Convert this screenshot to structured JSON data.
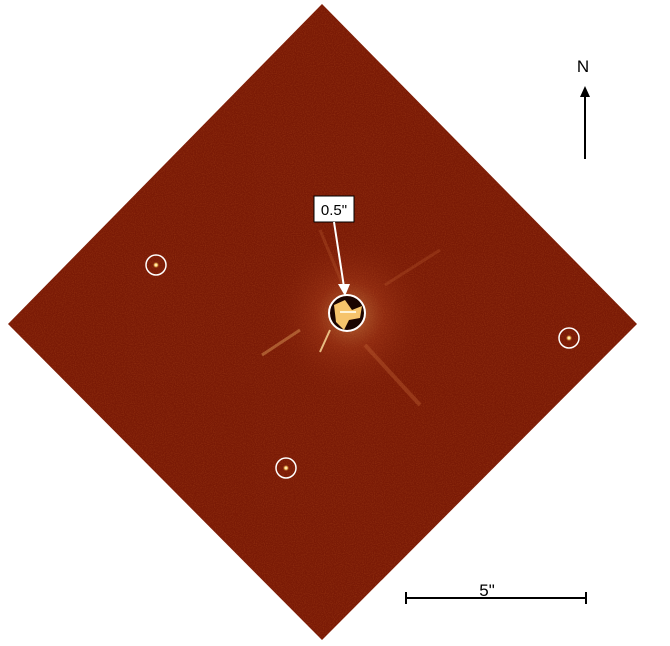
{
  "image": {
    "background_color": "#ffffff",
    "field_color": "#7a1a06",
    "core_label": "0.5\"",
    "compass_label": "N",
    "scale_bar_label": "5\"",
    "marker_color": "#ffffff",
    "source_markers": [
      {
        "name": "source-marker-west",
        "kind": "point-source"
      },
      {
        "name": "source-marker-east",
        "kind": "point-source"
      },
      {
        "name": "source-marker-south",
        "kind": "point-source"
      },
      {
        "name": "central-star-marker",
        "kind": "coronagraph-core"
      }
    ]
  }
}
